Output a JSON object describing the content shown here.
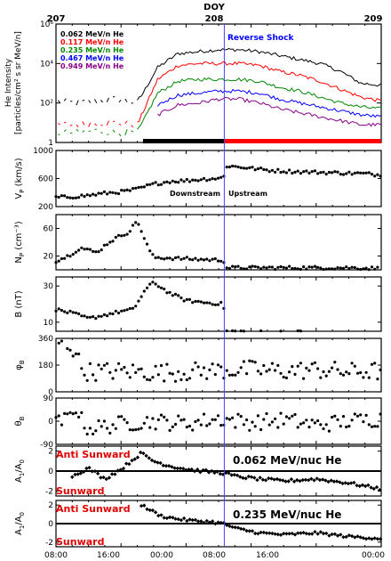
{
  "figure": {
    "top_axis_label": "DOY",
    "top_ticks": [
      "207",
      "208",
      "209"
    ],
    "bottom_ticks": [
      "08:00",
      "16:00",
      "00:00",
      "08:00",
      "16:00",
      "00:00"
    ],
    "shock_label": "Reverse Shock",
    "downstream_label": "Downstream",
    "upstream_label": "Upstream",
    "colors": {
      "black": "#000000",
      "red": "#ff0000",
      "green": "#008800",
      "blue": "#0000ff",
      "purple": "#880088",
      "shock_line": "#4444ff",
      "anisotropy_text": "#e00000"
    }
  },
  "chart_data": [
    {
      "id": "he-intensity",
      "type": "line",
      "ylabel_lines": [
        "He Intensity",
        "[particles/cm² s sr MeV/n]"
      ],
      "yscale": "log",
      "ylim": [
        1,
        1000000
      ],
      "yticks": [
        "1",
        "10²",
        "10⁴",
        "10⁶"
      ],
      "x_unit": "hours from 08:00 DOY 207",
      "xlim": [
        0,
        40
      ],
      "series": [
        {
          "name": "0.062 MeV/n He",
          "color": "#000000",
          "base_log": [
            2.1,
            2.0,
            2.1,
            2.2,
            2.0,
            3.8,
            4.5,
            4.6,
            4.7,
            4.7,
            4.6,
            4.4,
            4.2,
            4.0,
            3.6,
            3.0,
            2.9
          ]
        },
        {
          "name": "0.117 MeV/n He",
          "color": "#ff0000",
          "base_log": [
            0.9,
            0.9,
            1.0,
            1.0,
            0.9,
            3.2,
            3.9,
            4.0,
            4.0,
            4.0,
            3.9,
            3.6,
            3.4,
            3.1,
            2.7,
            2.3,
            2.1
          ]
        },
        {
          "name": "0.235 MeV/n He",
          "color": "#008800",
          "base_log": [
            0.5,
            0.5,
            0.6,
            0.5,
            0.5,
            2.5,
            3.1,
            3.2,
            3.2,
            3.2,
            3.1,
            2.8,
            2.6,
            2.3,
            2.0,
            1.8,
            1.7
          ]
        },
        {
          "name": "0.467 MeV/n He",
          "color": "#0000ff",
          "base_log": [
            null,
            null,
            null,
            null,
            null,
            1.9,
            2.4,
            2.5,
            2.6,
            2.6,
            2.5,
            2.2,
            2.0,
            1.8,
            1.6,
            1.4,
            1.3
          ]
        },
        {
          "name": "0.949 MeV/n He",
          "color": "#880088",
          "base_log": [
            null,
            null,
            null,
            null,
            null,
            1.4,
            1.9,
            2.0,
            2.2,
            2.2,
            2.0,
            1.7,
            1.5,
            1.3,
            1.1,
            0.9,
            0.9
          ]
        }
      ],
      "bar_segments": [
        {
          "from": 10.7,
          "to": 20.7,
          "color": "#000000"
        },
        {
          "from": 20.7,
          "to": 40,
          "color": "#ff0000"
        }
      ]
    },
    {
      "id": "vp",
      "type": "scatter",
      "ylabel_main": "V",
      "ylabel_sub": "P",
      "ylabel_unit": " (km/s)",
      "ylim": [
        200,
        1000
      ],
      "yticks": [
        {
          "v": 200,
          "t": "200"
        },
        {
          "v": 600,
          "t": "600"
        },
        {
          "v": 1000,
          "t": "1000"
        }
      ],
      "x_unit": "hours from 08:00 DOY 207",
      "x": [
        0,
        2,
        4,
        6,
        8,
        10,
        12,
        14,
        16,
        18,
        20.6,
        21,
        23,
        26,
        29,
        32,
        35,
        38,
        40
      ],
      "y": [
        330,
        340,
        360,
        390,
        410,
        450,
        520,
        560,
        570,
        590,
        610,
        780,
        760,
        720,
        700,
        690,
        680,
        670,
        650
      ]
    },
    {
      "id": "np",
      "type": "scatter",
      "ylabel_main": "N",
      "ylabel_sub": "P",
      "ylabel_unit": " (cm⁻³)",
      "ylim": [
        0,
        80
      ],
      "yticks": [
        {
          "v": 20,
          "t": "20"
        },
        {
          "v": 60,
          "t": "60"
        }
      ],
      "x": [
        0,
        1.5,
        3,
        5,
        6.5,
        8,
        9,
        10,
        11,
        12,
        14,
        16,
        18,
        20.6,
        21,
        24,
        28,
        32,
        36,
        40
      ],
      "y": [
        13,
        20,
        32,
        25,
        40,
        50,
        55,
        72,
        40,
        18,
        17,
        16,
        15,
        14,
        3,
        3,
        3,
        3,
        3,
        2
      ]
    },
    {
      "id": "b",
      "type": "scatter",
      "ylabel_main": "B",
      "ylabel_sub": "",
      "ylabel_unit": " (nT)",
      "ylim": [
        5,
        35
      ],
      "yticks": [
        {
          "v": 10,
          "t": "10"
        },
        {
          "v": 30,
          "t": "30"
        }
      ],
      "x": [
        0,
        2,
        4,
        6,
        8,
        9.5,
        11,
        12,
        14,
        16,
        18,
        20.6,
        21,
        25,
        30,
        35,
        40
      ],
      "y": [
        17,
        15,
        12,
        14,
        16,
        17,
        28,
        32,
        26,
        22,
        21,
        20,
        5,
        4.5,
        4.5,
        4,
        3.5
      ]
    },
    {
      "id": "phi",
      "type": "scatter",
      "ylabel_main": "φ",
      "ylabel_sub": "B",
      "ylabel_unit": "",
      "ylim": [
        0,
        360
      ],
      "yticks": [
        {
          "v": 0,
          "t": "0"
        },
        {
          "v": 180,
          "t": "180"
        },
        {
          "v": 360,
          "t": "360"
        }
      ],
      "x": [
        0,
        1.5,
        2.5,
        3,
        4,
        8,
        12,
        16,
        20,
        24,
        28,
        32,
        36,
        40
      ],
      "y": [
        340,
        320,
        270,
        160,
        135,
        140,
        130,
        135,
        145,
        150,
        140,
        150,
        135,
        140
      ]
    },
    {
      "id": "theta",
      "type": "scatter",
      "ylabel_main": "θ",
      "ylabel_sub": "B",
      "ylabel_unit": "",
      "ylim": [
        -90,
        90
      ],
      "yticks": [
        {
          "v": -90,
          "t": "-90"
        },
        {
          "v": 0,
          "t": "0"
        },
        {
          "v": 90,
          "t": "90"
        }
      ],
      "x": [
        0,
        1.5,
        2.5,
        3,
        4,
        8,
        12,
        16,
        20,
        24,
        28,
        32,
        36,
        40
      ],
      "y": [
        -10,
        10,
        60,
        10,
        -30,
        -10,
        0,
        -10,
        10,
        -5,
        5,
        -15,
        0,
        10
      ]
    },
    {
      "id": "a1-low",
      "type": "scatter",
      "ylabel_main": "A",
      "ylabel_sub": "1",
      "ylabel_unit": "/A",
      "ylabel_sub2": "0",
      "ylim": [
        -2.5,
        2.5
      ],
      "yticks": [
        {
          "v": -2,
          "t": "-2"
        },
        {
          "v": 0,
          "t": "0"
        },
        {
          "v": 2,
          "t": "2"
        }
      ],
      "annotation": "0.062 MeV/nuc He",
      "anti_label": "Anti Sunward",
      "sun_label": "Sunward",
      "x": [
        2,
        4,
        6,
        8,
        10.5,
        12,
        14,
        16,
        18,
        20.6,
        22,
        25,
        28,
        32,
        36,
        40
      ],
      "y": [
        -0.5,
        0.3,
        -0.8,
        0.2,
        1.8,
        1.0,
        0.5,
        0.2,
        0.0,
        -0.2,
        -0.5,
        -0.8,
        -1.0,
        -0.8,
        -1.2,
        -1.8
      ]
    },
    {
      "id": "a1-high",
      "type": "scatter",
      "ylabel_main": "A",
      "ylabel_sub": "1",
      "ylabel_unit": "/A",
      "ylabel_sub2": "0",
      "ylim": [
        -2.5,
        2.5
      ],
      "yticks": [
        {
          "v": -2,
          "t": "-2"
        },
        {
          "v": 0,
          "t": "0"
        },
        {
          "v": 2,
          "t": "2"
        }
      ],
      "annotation": "0.235 MeV/nuc He",
      "anti_label": "Anti Sunward",
      "sun_label": "Sunward",
      "x": [
        10.5,
        11.5,
        13,
        15,
        17,
        19,
        20.6,
        22,
        25,
        28,
        32,
        36,
        40
      ],
      "y": [
        2.0,
        1.5,
        0.8,
        0.5,
        0.3,
        0.2,
        0.0,
        -0.5,
        -1.0,
        -1.2,
        -1.0,
        -1.4,
        -1.6
      ]
    }
  ]
}
